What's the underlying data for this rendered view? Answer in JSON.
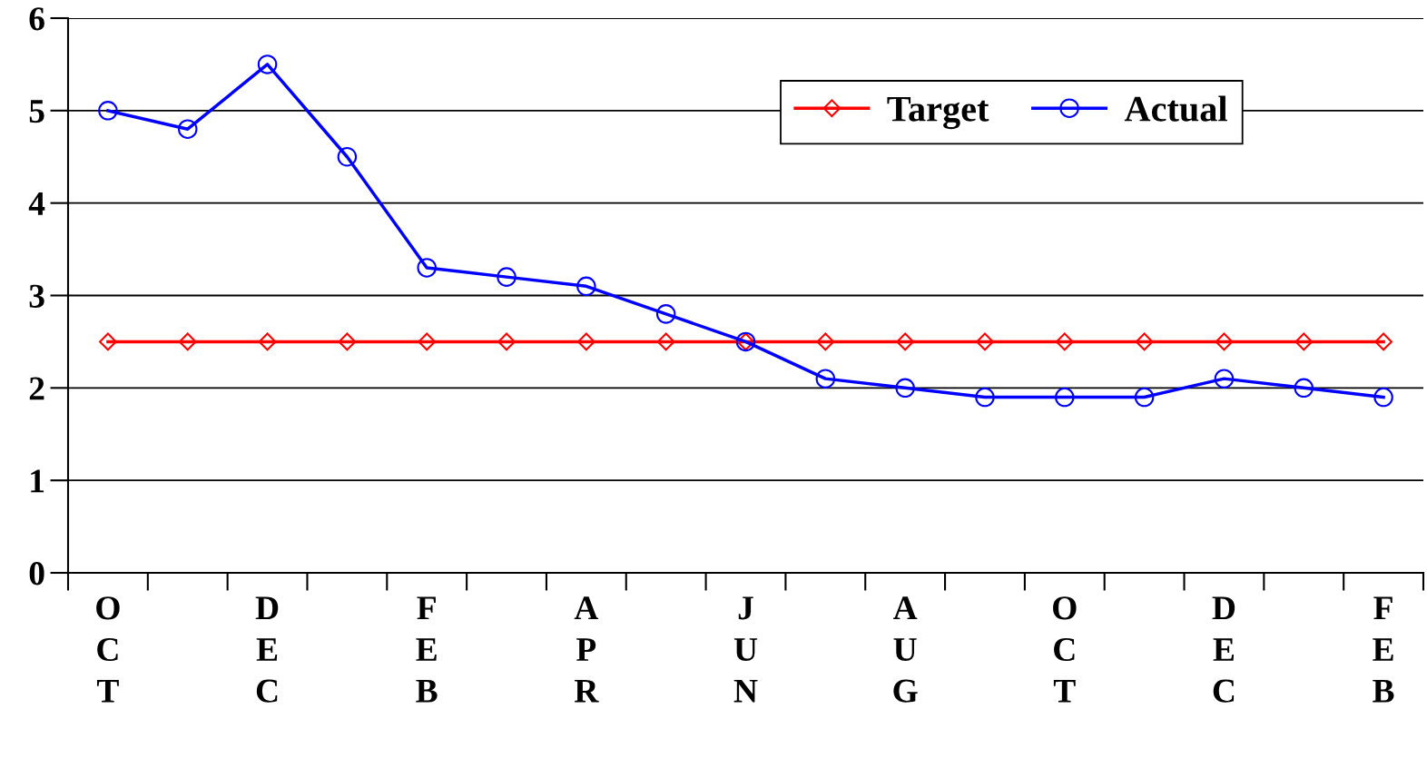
{
  "chart_data": {
    "type": "line",
    "categories": [
      "O\nC\nT",
      null,
      "D\nE\nC",
      null,
      "F\nE\nB",
      null,
      "A\nP\nR",
      null,
      "J\nU\nN",
      null,
      "A\nU\nG",
      null,
      "O\nC\nT",
      null,
      "D\nE\nC",
      null,
      "F\nE\nB"
    ],
    "series": [
      {
        "name": "Target",
        "color": "#ff0000",
        "marker": "diamond",
        "values": [
          2.5,
          2.5,
          2.5,
          2.5,
          2.5,
          2.5,
          2.5,
          2.5,
          2.5,
          2.5,
          2.5,
          2.5,
          2.5,
          2.5,
          2.5,
          2.5,
          2.5
        ]
      },
      {
        "name": "Actual",
        "color": "#0000ff",
        "marker": "circle",
        "values": [
          5.0,
          4.8,
          5.5,
          4.5,
          3.3,
          3.2,
          3.1,
          2.8,
          2.5,
          2.1,
          2.0,
          1.9,
          1.9,
          1.9,
          2.1,
          2.0,
          1.9
        ]
      }
    ],
    "ylim": [
      0,
      6
    ],
    "yticks": [
      0,
      1,
      2,
      3,
      4,
      5,
      6
    ],
    "grid": "y",
    "legend": "top right",
    "line_style": "solid"
  }
}
